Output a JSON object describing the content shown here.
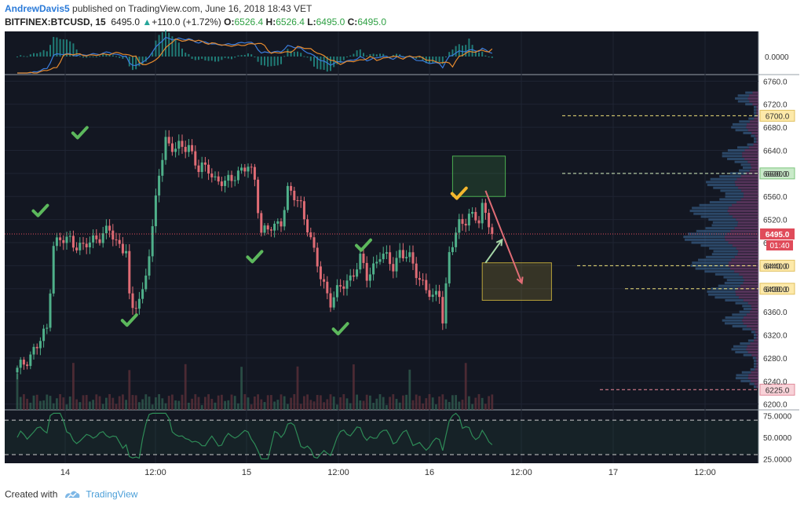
{
  "header": {
    "author": "AndrewDavis5",
    "published_text": " published on TradingView.com, June 16, 2018 18:43 VET",
    "symbol": "BITFINEX:BTCUSD, 15",
    "last": "6495.0",
    "change_arrow": "▲",
    "change": "+110.0 (+1.72%)",
    "o_label": "O:",
    "o_value": "6526.4",
    "h_label": "H:",
    "h_value": "6526.4",
    "l_label": "L:",
    "l_value": "6495.0",
    "c_label": "C:",
    "c_value": "6495.0"
  },
  "footer": {
    "created_with": "Created with",
    "brand": "TradingView"
  },
  "colors": {
    "background": "#131722",
    "bull": "#4fb08a",
    "bear": "#e06c75",
    "check_green": "#5cb85c",
    "check_gold": "#f5b82e",
    "macd_line": "#3b7ddd",
    "signal_line": "#e68a2e",
    "rsi_line": "#2e8b57"
  },
  "chart_data": {
    "type": "candlestick",
    "x_ticks": [
      "14",
      "12:00",
      "15",
      "12:00",
      "16",
      "12:00",
      "17",
      "12:00"
    ],
    "price_ticks": [
      "6760.0",
      "6720.0",
      "6680.0",
      "6640.0",
      "6600.0",
      "6560.0",
      "6520.0",
      "6480.0",
      "6440.0",
      "6400.0",
      "6360.0",
      "6320.0",
      "6280.0",
      "6240.0",
      "6200.0"
    ],
    "price_range": [
      6190,
      6770
    ],
    "current_price": "6495.0",
    "countdown": "01:40",
    "levels": [
      {
        "label": "6700.0",
        "price": 6700,
        "style": "yellow"
      },
      {
        "label": "6600.0",
        "price": 6600,
        "style": "green"
      },
      {
        "label": "6440.0",
        "price": 6440,
        "style": "yellow"
      },
      {
        "label": "6400.0",
        "price": 6400,
        "style": "yellow"
      },
      {
        "label": "6225.0",
        "price": 6225,
        "style": "red"
      }
    ],
    "macd": {
      "axis_label": "0.0000"
    },
    "rsi": {
      "ticks": [
        "75.0000",
        "50.0000",
        "25.0000"
      ],
      "upper": 70,
      "lower": 30
    },
    "close_path": [
      [
        0,
        6258
      ],
      [
        6,
        6300
      ],
      [
        9,
        6330
      ],
      [
        11,
        6480
      ],
      [
        16,
        6485
      ],
      [
        20,
        6470
      ],
      [
        24,
        6490
      ],
      [
        28,
        6500
      ],
      [
        30,
        6480
      ],
      [
        33,
        6470
      ],
      [
        34,
        6380
      ],
      [
        35,
        6360
      ],
      [
        38,
        6395
      ],
      [
        41,
        6500
      ],
      [
        43,
        6600
      ],
      [
        45,
        6660
      ],
      [
        48,
        6640
      ],
      [
        52,
        6650
      ],
      [
        55,
        6605
      ],
      [
        58,
        6610
      ],
      [
        60,
        6590
      ],
      [
        63,
        6580
      ],
      [
        66,
        6600
      ],
      [
        70,
        6610
      ],
      [
        72,
        6590
      ],
      [
        74,
        6500
      ],
      [
        78,
        6505
      ],
      [
        80,
        6520
      ],
      [
        82,
        6570
      ],
      [
        86,
        6545
      ],
      [
        88,
        6510
      ],
      [
        90,
        6460
      ],
      [
        92,
        6420
      ],
      [
        95,
        6380
      ],
      [
        98,
        6400
      ],
      [
        101,
        6420
      ],
      [
        104,
        6450
      ],
      [
        106,
        6420
      ],
      [
        110,
        6460
      ],
      [
        114,
        6440
      ],
      [
        116,
        6465
      ],
      [
        119,
        6450
      ],
      [
        122,
        6420
      ],
      [
        126,
        6380
      ],
      [
        128,
        6395
      ],
      [
        129,
        6350
      ],
      [
        131,
        6460
      ],
      [
        134,
        6510
      ],
      [
        137,
        6530
      ],
      [
        140,
        6515
      ],
      [
        141,
        6540
      ],
      [
        143,
        6520
      ],
      [
        144,
        6495
      ]
    ],
    "checkmarks": [
      {
        "index": 7,
        "price": 6535,
        "color": "green"
      },
      {
        "index": 19,
        "price": 6670,
        "color": "green"
      },
      {
        "index": 34,
        "price": 6345,
        "color": "green"
      },
      {
        "index": 72,
        "price": 6455,
        "color": "green"
      },
      {
        "index": 98,
        "price": 6330,
        "color": "green"
      },
      {
        "index": 105,
        "price": 6475,
        "color": "green"
      },
      {
        "index": 134,
        "price": 6565,
        "color": "gold"
      }
    ],
    "zones": [
      {
        "name": "upper-target-zone",
        "price_top": 6630,
        "price_bottom": 6560,
        "i_start": 132,
        "i_end": 148,
        "color": "green"
      },
      {
        "name": "lower-target-zone",
        "price_top": 6445,
        "price_bottom": 6380,
        "i_start": 141,
        "i_end": 162,
        "color": "yellow"
      }
    ],
    "arrows": [
      {
        "from_index": 142,
        "from_price": 6570,
        "to_index": 153,
        "to_price": 6410,
        "color": "red"
      },
      {
        "from_index": 142,
        "from_price": 6445,
        "to_index": 147,
        "to_price": 6485,
        "color": "green"
      }
    ]
  }
}
